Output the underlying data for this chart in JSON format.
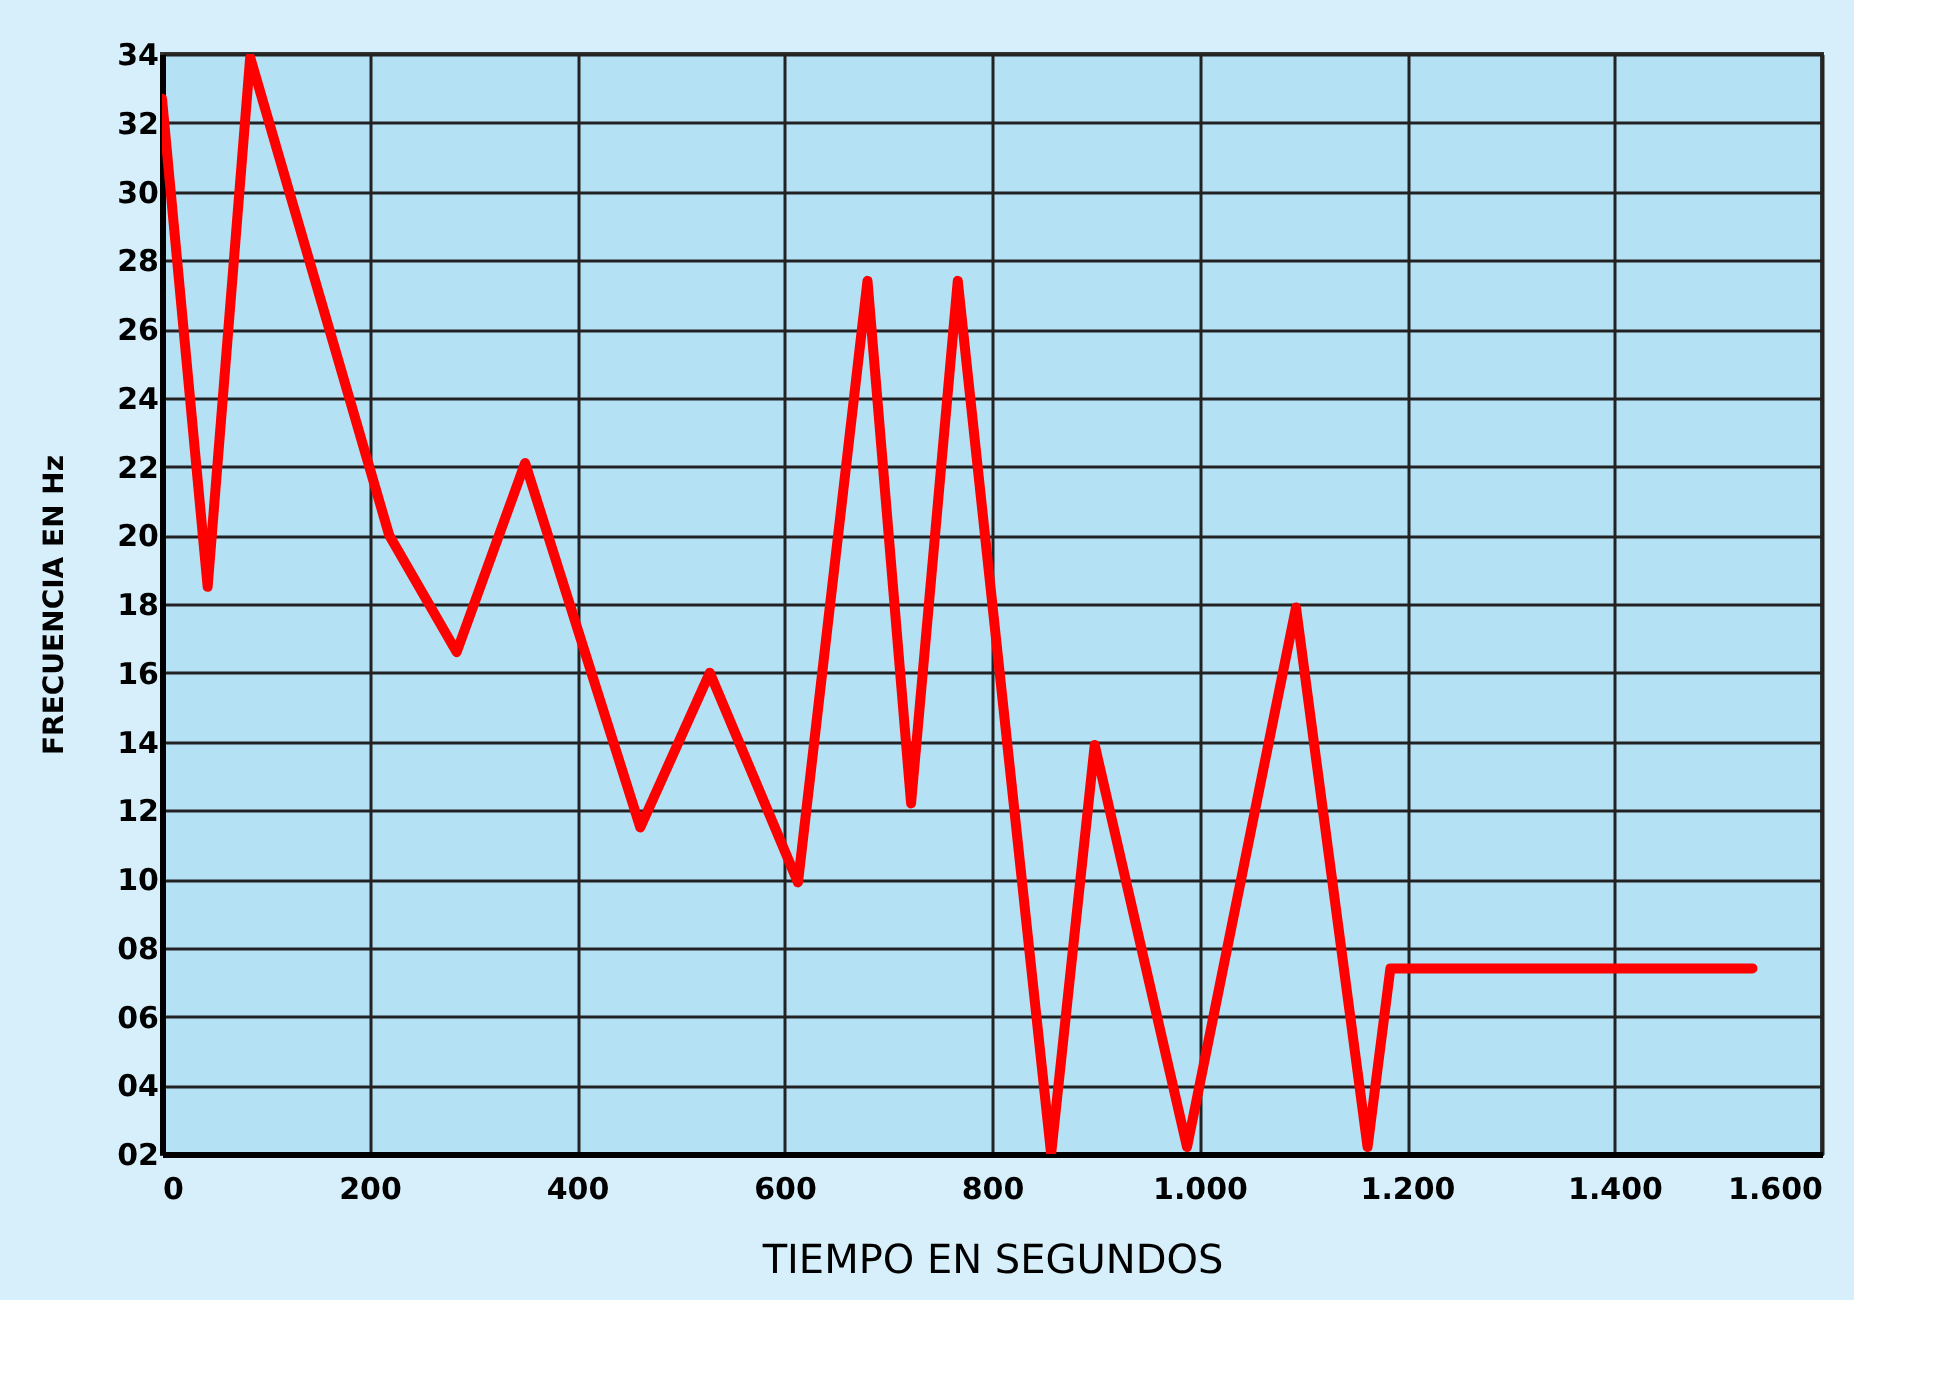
{
  "chart_data": {
    "type": "line",
    "xlabel": "TIEMPO EN SEGUNDOS",
    "ylabel": "FRECUENCIA EN Hz",
    "x": [
      0,
      44,
      85,
      219,
      284,
      350,
      461,
      528,
      613,
      680,
      722,
      767,
      857,
      899,
      988,
      1093,
      1162,
      1184,
      1533
    ],
    "series": [
      {
        "color": "#ff0000",
        "values": [
          32.7,
          18.5,
          33.9,
          20,
          16.6,
          22.1,
          11.5,
          16,
          9.9,
          27.4,
          12.2,
          27.4,
          2,
          13.9,
          2.2,
          17.9,
          2.2,
          7.4,
          7.4
        ]
      }
    ],
    "xlim": [
      0,
      1600
    ],
    "xticks": [
      0,
      200,
      400,
      600,
      800,
      {
        "value": 1000,
        "label": "1.000"
      },
      {
        "value": 1200,
        "label": "1.200"
      },
      {
        "value": 1400,
        "label": "1.400"
      },
      {
        "value": 1600,
        "label": "1.600"
      }
    ],
    "ylim": [
      2,
      34
    ],
    "yticks": [
      {
        "value": 2,
        "label": "02"
      },
      {
        "value": 4,
        "label": "04"
      },
      {
        "value": 6,
        "label": "06"
      },
      {
        "value": 8,
        "label": "08"
      },
      10,
      12,
      14,
      16,
      18,
      20,
      22,
      24,
      26,
      28,
      30,
      32,
      34
    ],
    "grid": true,
    "marker": "none",
    "line_style": "solid"
  }
}
